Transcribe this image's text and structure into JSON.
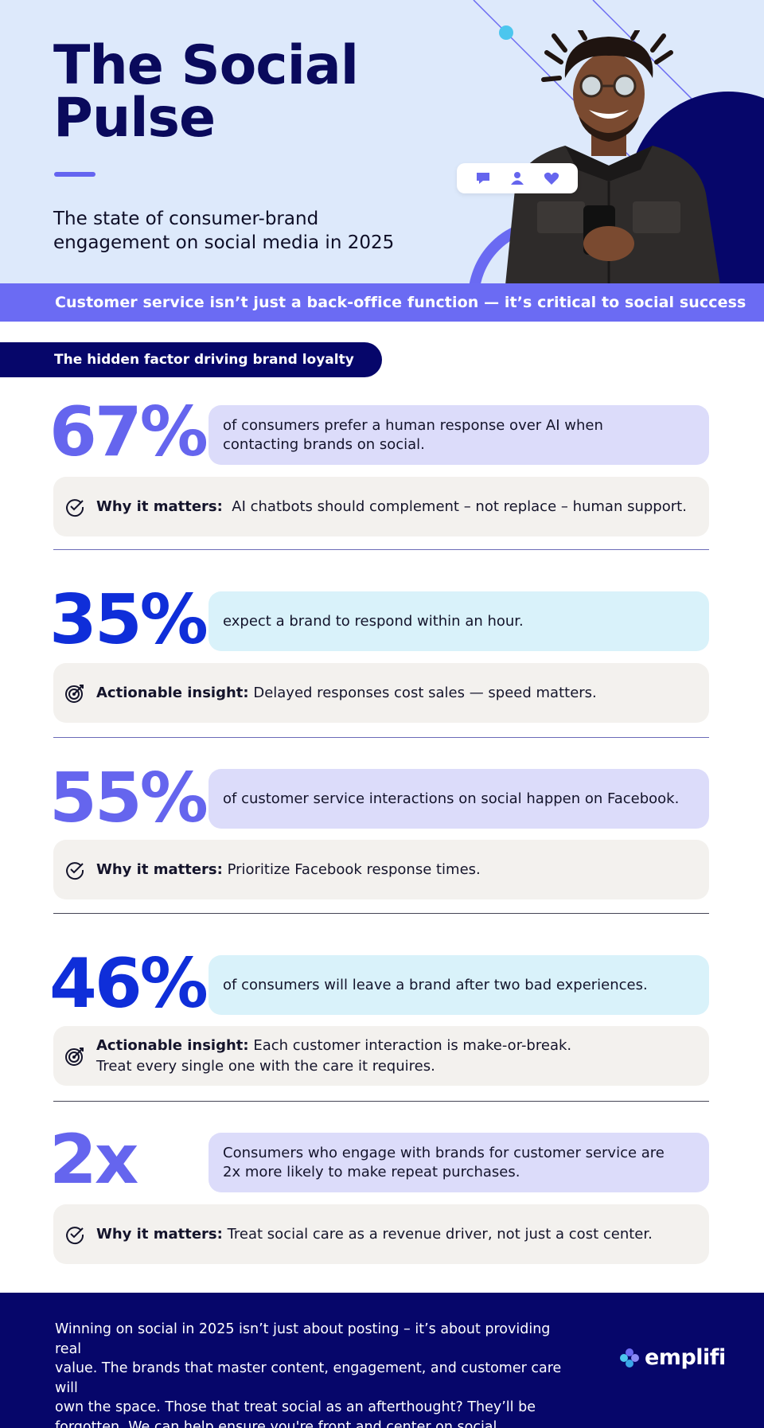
{
  "hero": {
    "title_line1": "The Social",
    "title_line2": "Pulse",
    "subtitle_line1": "The state of consumer-brand",
    "subtitle_line2": "engagement on social media in 2025",
    "icons": [
      "comment-icon",
      "user-icon",
      "heart-icon"
    ]
  },
  "banner": "Customer service isn’t just a back-office function — it’s critical to social success",
  "section_title": "The hidden factor driving brand loyalty",
  "stats": [
    {
      "value": "67%",
      "desc_lines": [
        "of consumers prefer a human response over AI when",
        "contacting brands on social."
      ],
      "note_label": "Why it matters:",
      "note_lines": [
        "AI chatbots should complement – not replace – human support."
      ],
      "note_icon": "check-circle-icon"
    },
    {
      "value": "35%",
      "desc_lines": [
        "expect a brand to respond within an hour."
      ],
      "note_label": "Actionable insight:",
      "note_lines": [
        "Delayed responses cost sales — speed matters."
      ],
      "note_icon": "target-icon"
    },
    {
      "value": "55%",
      "desc_lines": [
        "of customer service interactions on social happen on Facebook."
      ],
      "note_label": "Why it matters:",
      "note_lines": [
        "Prioritize Facebook response times."
      ],
      "note_icon": "check-circle-icon"
    },
    {
      "value": "46%",
      "desc_lines": [
        "of consumers will leave a brand after two bad experiences."
      ],
      "note_label": "Actionable insight:",
      "note_lines": [
        "Each customer interaction is make-or-break.",
        "Treat every single one with the care it requires."
      ],
      "note_icon": "target-icon"
    },
    {
      "value": "2x",
      "desc_lines": [
        "Consumers who engage with brands for customer service are",
        "2x more likely to make repeat purchases."
      ],
      "note_label": "Why it matters:",
      "note_lines": [
        "Treat social care as a revenue driver, not just a cost center."
      ],
      "note_icon": "check-circle-icon"
    }
  ],
  "footer": {
    "text_lines": [
      "Winning on social in 2025 isn’t just about posting – it’s about providing real",
      "value. The brands that master content, engagement, and customer care will",
      "own the space. Those that treat social as an afterthought? They’ll be",
      "forgotten. We can help ensure you're front and center on social."
    ],
    "logo_text": "emplifi"
  },
  "colors": {
    "navy": "#06066a",
    "violet": "#6b6bf3",
    "blue": "#0f2ed9",
    "lavender": "#dcdcfa",
    "cyan": "#d9f2fa",
    "hero_bg": "#dde9fb"
  }
}
